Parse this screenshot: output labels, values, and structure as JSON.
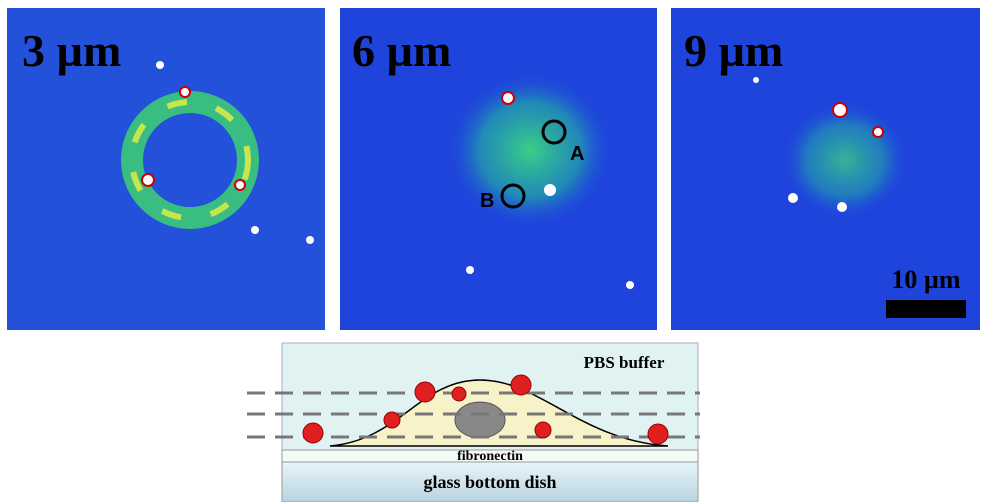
{
  "panels": [
    {
      "label": "3 µm"
    },
    {
      "label": "6 µm",
      "markers": [
        "A",
        "B"
      ]
    },
    {
      "label": "9 µm",
      "scale_bar": "10 µm"
    }
  ],
  "diagram": {
    "medium": "PBS buffer",
    "coating": "fibronectin",
    "substrate": "glass bottom dish"
  }
}
